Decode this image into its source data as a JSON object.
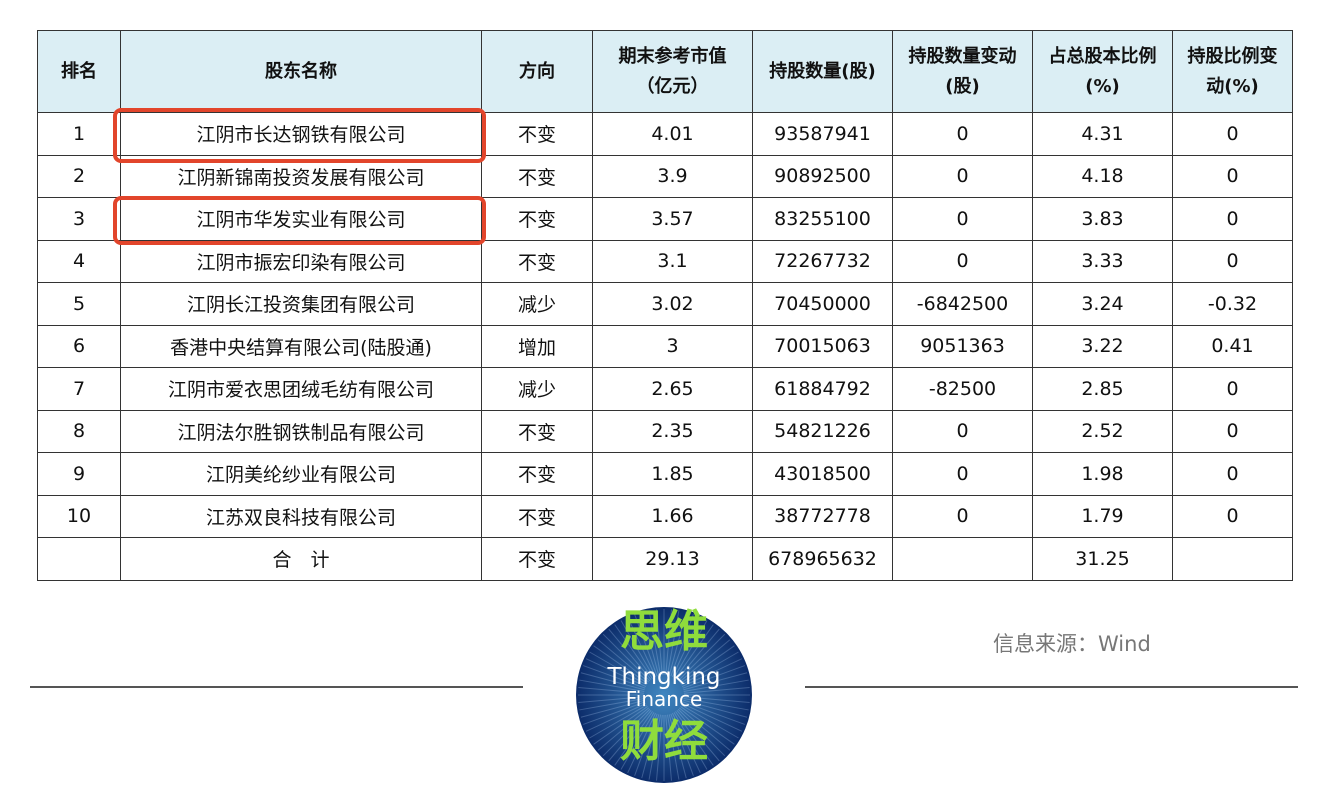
{
  "table": {
    "header": [
      "排名",
      "股东名称",
      "方向",
      "期末参考市值\n（亿元）",
      "持股数量(股)",
      "持股数量变动\n(股)",
      "占总股本比例\n(%)",
      "持股比例变\n动(%)"
    ],
    "rows": [
      [
        1,
        "江阴市长达钢铁有限公司",
        "不变",
        4.01,
        93587941,
        0,
        4.31,
        0
      ],
      [
        2,
        "江阴新锦南投资发展有限公司",
        "不变",
        3.9,
        90892500,
        0,
        4.18,
        0
      ],
      [
        3,
        "江阴市华发实业有限公司",
        "不变",
        3.57,
        83255100,
        0,
        3.83,
        0
      ],
      [
        4,
        "江阴市振宏印染有限公司",
        "不变",
        3.1,
        72267732,
        0,
        3.33,
        0
      ],
      [
        5,
        "江阴长江投资集团有限公司",
        "减少",
        3.02,
        70450000,
        -6842500,
        3.24,
        -0.32
      ],
      [
        6,
        "香港中央结算有限公司(陆股通)",
        "增加",
        3,
        70015063,
        9051363,
        3.22,
        0.41
      ],
      [
        7,
        "江阴市爱衣思团绒毛纺有限公司",
        "减少",
        2.65,
        61884792,
        -82500,
        2.85,
        0
      ],
      [
        8,
        "江阴法尔胜钢铁制品有限公司",
        "不变",
        2.35,
        54821226,
        0,
        2.52,
        0
      ],
      [
        9,
        "江阴美纶纱业有限公司",
        "不变",
        1.85,
        43018500,
        0,
        1.98,
        0
      ],
      [
        10,
        "江苏双良科技有限公司",
        "不变",
        1.66,
        38772778,
        0,
        1.79,
        0
      ],
      [
        null,
        "合　计",
        "不变",
        29.13,
        678965632,
        null,
        31.25,
        null
      ]
    ]
  },
  "logo": {
    "top": "思维",
    "line1": "Thingking",
    "line2": "Finance",
    "bottom": "财经"
  },
  "source": "信息来源：Wind"
}
